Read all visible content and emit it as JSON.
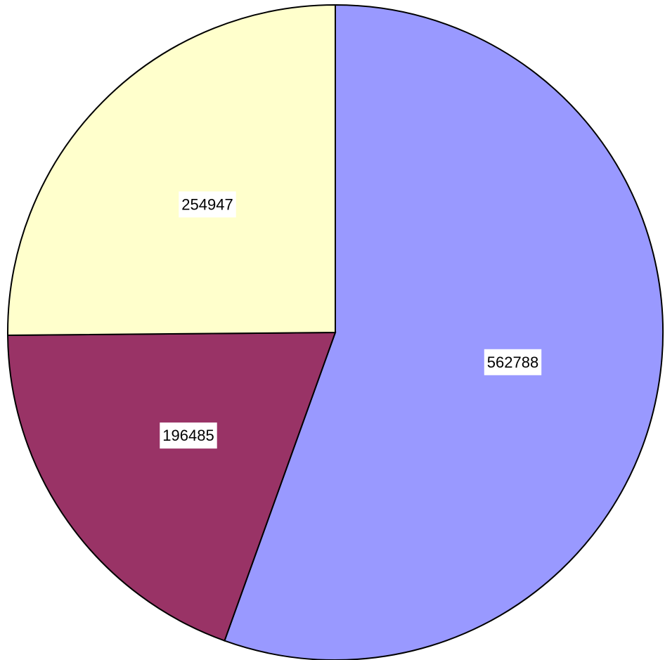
{
  "chart_data": {
    "type": "pie",
    "values": [
      562788,
      196485,
      254947
    ],
    "colors": [
      "#9999ff",
      "#993366",
      "#ffffcc"
    ]
  }
}
